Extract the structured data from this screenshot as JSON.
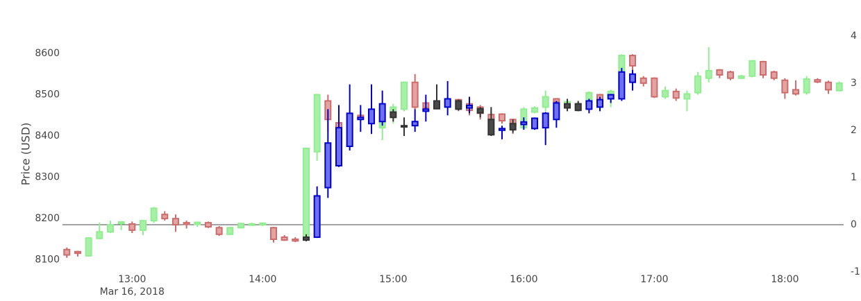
{
  "chart_data": {
    "type": "candlestick",
    "y_label": "Price (USD)",
    "xlim": [
      "2018-03-16 12:28",
      "2018-03-16 18:27"
    ],
    "xticks": [
      {
        "value": "2018-03-16 13:00",
        "label": "13:00"
      },
      {
        "value": "2018-03-16 14:00",
        "label": "14:00"
      },
      {
        "value": "2018-03-16 15:00",
        "label": "15:00"
      },
      {
        "value": "2018-03-16 16:00",
        "label": "16:00"
      },
      {
        "value": "2018-03-16 17:00",
        "label": "17:00"
      },
      {
        "value": "2018-03-16 18:00",
        "label": "18:00"
      }
    ],
    "x_date_label": "Mar 16, 2018",
    "ylim": [
      8071,
      8642
    ],
    "yticks": [
      8100,
      8200,
      8300,
      8400,
      8500,
      8600
    ],
    "y2lim": [
      -1,
      4
    ],
    "y2ticks": [
      -1,
      0,
      1,
      2,
      3,
      4
    ],
    "y2_zeroline": true,
    "series": [
      {
        "increasing": {
          "line_color": "#90ee90",
          "fill_color": "#a8f0a8"
        },
        "decreasing": {
          "line_color": "#cd6b6b",
          "fill_color": "#e3a3a3"
        },
        "x": [
          "2018-03-16 12:30",
          "2018-03-16 12:35",
          "2018-03-16 12:40",
          "2018-03-16 12:45",
          "2018-03-16 12:50",
          "2018-03-16 12:55",
          "2018-03-16 13:00",
          "2018-03-16 13:05",
          "2018-03-16 13:10",
          "2018-03-16 13:15",
          "2018-03-16 13:20",
          "2018-03-16 13:25",
          "2018-03-16 13:30",
          "2018-03-16 13:35",
          "2018-03-16 13:40",
          "2018-03-16 13:45",
          "2018-03-16 13:50",
          "2018-03-16 13:55",
          "2018-03-16 14:00",
          "2018-03-16 14:05",
          "2018-03-16 14:10",
          "2018-03-16 14:15",
          "2018-03-16 14:20",
          "2018-03-16 14:25",
          "2018-03-16 14:30",
          "2018-03-16 14:35",
          "2018-03-16 14:40",
          "2018-03-16 14:45",
          "2018-03-16 14:50",
          "2018-03-16 14:55",
          "2018-03-16 15:00",
          "2018-03-16 15:05",
          "2018-03-16 15:10",
          "2018-03-16 15:15",
          "2018-03-16 15:20",
          "2018-03-16 15:25",
          "2018-03-16 15:30",
          "2018-03-16 15:35",
          "2018-03-16 15:40",
          "2018-03-16 15:45",
          "2018-03-16 15:50",
          "2018-03-16 15:55",
          "2018-03-16 16:00",
          "2018-03-16 16:05",
          "2018-03-16 16:10",
          "2018-03-16 16:15",
          "2018-03-16 16:20",
          "2018-03-16 16:25",
          "2018-03-16 16:30",
          "2018-03-16 16:35",
          "2018-03-16 16:40",
          "2018-03-16 16:45",
          "2018-03-16 16:50",
          "2018-03-16 16:55",
          "2018-03-16 17:00",
          "2018-03-16 17:05",
          "2018-03-16 17:10",
          "2018-03-16 17:15",
          "2018-03-16 17:20",
          "2018-03-16 17:25",
          "2018-03-16 17:30",
          "2018-03-16 17:35",
          "2018-03-16 17:40",
          "2018-03-16 17:45",
          "2018-03-16 17:50",
          "2018-03-16 17:55",
          "2018-03-16 18:00",
          "2018-03-16 18:05",
          "2018-03-16 18:10",
          "2018-03-16 18:15",
          "2018-03-16 18:20",
          "2018-03-16 18:25"
        ],
        "open": [
          8125,
          8120,
          8110,
          8152,
          8168,
          8188,
          8187,
          8172,
          8195,
          8210,
          8200,
          8190,
          8186,
          8190,
          8178,
          8162,
          8178,
          8184,
          8185,
          8178,
          8155,
          8150,
          8150,
          8362,
          8485,
          8432,
          8375,
          8450,
          8440,
          8420,
          8445,
          8465,
          8530,
          8480,
          8478,
          8472,
          8488,
          8478,
          8470,
          8452,
          8453,
          8440,
          8420,
          8458,
          8470,
          8490,
          8475,
          8478,
          8480,
          8500,
          8490,
          8505,
          8595,
          8540,
          8540,
          8495,
          8508,
          8490,
          8505,
          8540,
          8560,
          8555,
          8540,
          8545,
          8580,
          8555,
          8535,
          8512,
          8505,
          8536,
          8530,
          8510
        ],
        "high": [
          8130,
          8122,
          8155,
          8190,
          8195,
          8193,
          8193,
          8196,
          8228,
          8218,
          8210,
          8195,
          8193,
          8193,
          8182,
          8180,
          8190,
          8190,
          8190,
          8180,
          8160,
          8155,
          8372,
          8502,
          8500,
          8435,
          8455,
          8460,
          8470,
          8470,
          8478,
          8532,
          8550,
          8485,
          8482,
          8498,
          8490,
          8488,
          8475,
          8460,
          8455,
          8442,
          8470,
          8472,
          8510,
          8492,
          8490,
          8482,
          8508,
          8502,
          8512,
          8598,
          8598,
          8545,
          8542,
          8520,
          8515,
          8510,
          8555,
          8615,
          8562,
          8558,
          8548,
          8584,
          8582,
          8558,
          8540,
          8535,
          8545,
          8540,
          8534,
          8532
        ],
        "low": [
          8105,
          8108,
          8108,
          8150,
          8165,
          8172,
          8165,
          8160,
          8190,
          8195,
          8168,
          8176,
          8180,
          8177,
          8158,
          8160,
          8176,
          8183,
          8182,
          8142,
          8146,
          8143,
          8148,
          8340,
          8410,
          8368,
          8370,
          8435,
          8435,
          8390,
          8430,
          8460,
          8465,
          8460,
          8465,
          8468,
          8460,
          8450,
          8440,
          8430,
          8430,
          8405,
          8418,
          8455,
          8460,
          8470,
          8465,
          8460,
          8470,
          8470,
          8470,
          8495,
          8530,
          8520,
          8492,
          8490,
          8485,
          8460,
          8500,
          8530,
          8540,
          8535,
          8538,
          8542,
          8540,
          8535,
          8490,
          8498,
          8500,
          8528,
          8502,
          8508
        ],
        "close": [
          8112,
          8116,
          8153,
          8168,
          8185,
          8192,
          8172,
          8195,
          8225,
          8200,
          8185,
          8186,
          8191,
          8180,
          8162,
          8178,
          8188,
          8187,
          8189,
          8150,
          8148,
          8146,
          8370,
          8500,
          8440,
          8372,
          8450,
          8445,
          8460,
          8465,
          8470,
          8530,
          8470,
          8468,
          8470,
          8490,
          8472,
          8462,
          8455,
          8440,
          8437,
          8425,
          8465,
          8468,
          8495,
          8482,
          8483,
          8466,
          8505,
          8482,
          8508,
          8595,
          8570,
          8528,
          8495,
          8510,
          8492,
          8502,
          8545,
          8558,
          8548,
          8540,
          8545,
          8582,
          8548,
          8540,
          8505,
          8502,
          8538,
          8531,
          8512,
          8528
        ]
      },
      {
        "increasing": {
          "line_color": "#0000cd",
          "fill_color": "#7070ee"
        },
        "decreasing": {
          "line_color": "#333333",
          "fill_color": "#4a4a4a"
        },
        "x": [
          "2018-03-16 14:20",
          "2018-03-16 14:25",
          "2018-03-16 14:30",
          "2018-03-16 14:35",
          "2018-03-16 14:40",
          "2018-03-16 14:45",
          "2018-03-16 14:50",
          "2018-03-16 14:55",
          "2018-03-16 15:00",
          "2018-03-16 15:05",
          "2018-03-16 15:10",
          "2018-03-16 15:15",
          "2018-03-16 15:20",
          "2018-03-16 15:25",
          "2018-03-16 15:30",
          "2018-03-16 15:35",
          "2018-03-16 15:40",
          "2018-03-16 15:45",
          "2018-03-16 15:50",
          "2018-03-16 15:55",
          "2018-03-16 16:00",
          "2018-03-16 16:05",
          "2018-03-16 16:10",
          "2018-03-16 16:15",
          "2018-03-16 16:20",
          "2018-03-16 16:25",
          "2018-03-16 16:30",
          "2018-03-16 16:35",
          "2018-03-16 16:40",
          "2018-03-16 16:45",
          "2018-03-16 16:50"
        ],
        "open": [
          8155,
          8155,
          8275,
          8328,
          8375,
          8440,
          8430,
          8435,
          8458,
          8425,
          8425,
          8460,
          8485,
          8470,
          8485,
          8468,
          8466,
          8440,
          8414,
          8430,
          8428,
          8418,
          8420,
          8440,
          8478,
          8478,
          8465,
          8470,
          8490,
          8490,
          8530
        ],
        "high": [
          8162,
          8278,
          8465,
          8475,
          8525,
          8475,
          8525,
          8510,
          8465,
          8445,
          8465,
          8500,
          8525,
          8533,
          8488,
          8495,
          8470,
          8470,
          8425,
          8440,
          8445,
          8445,
          8458,
          8485,
          8490,
          8485,
          8490,
          8495,
          8502,
          8565,
          8560
        ],
        "low": [
          8145,
          8153,
          8250,
          8325,
          8365,
          8410,
          8405,
          8425,
          8435,
          8400,
          8410,
          8435,
          8465,
          8450,
          8462,
          8455,
          8445,
          8400,
          8392,
          8408,
          8415,
          8415,
          8378,
          8420,
          8460,
          8460,
          8455,
          8460,
          8480,
          8485,
          8510
        ],
        "close": [
          8148,
          8255,
          8383,
          8420,
          8455,
          8445,
          8465,
          8478,
          8445,
          8422,
          8435,
          8465,
          8466,
          8490,
          8465,
          8474,
          8456,
          8403,
          8418,
          8415,
          8434,
          8443,
          8455,
          8480,
          8468,
          8462,
          8485,
          8488,
          8500,
          8555,
          8550
        ]
      }
    ]
  }
}
